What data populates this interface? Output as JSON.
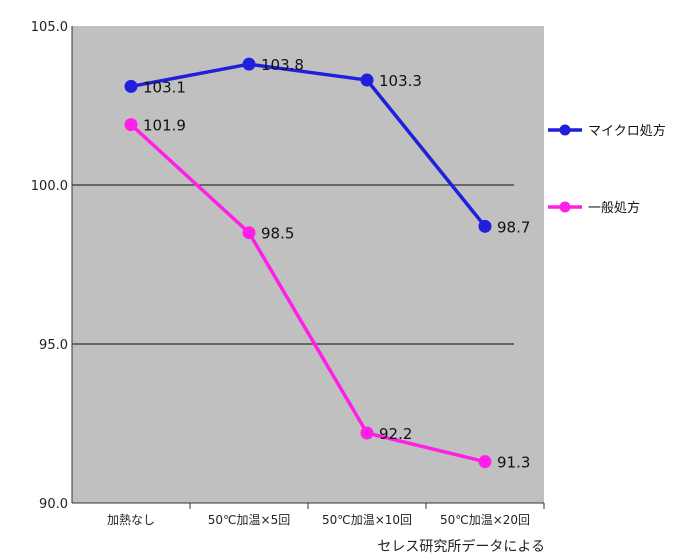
{
  "chart_data": {
    "type": "line",
    "categories": [
      "加熱なし",
      "50℃加温×5回",
      "50℃加温×10回",
      "50℃加温×20回"
    ],
    "series": [
      {
        "name": "マイクロ処方",
        "color": "#1f1fdc",
        "values": [
          103.1,
          103.8,
          103.3,
          98.7
        ],
        "labels": [
          "103.1",
          "103.8",
          "103.3",
          "98.7"
        ]
      },
      {
        "name": "一般処方",
        "color": "#ff1fe6",
        "values": [
          101.9,
          98.5,
          92.2,
          91.3
        ],
        "labels": [
          "101.9",
          "98.5",
          "92.2",
          "91.3"
        ]
      }
    ],
    "ylim": [
      90,
      105
    ],
    "yticks": [
      90,
      95,
      100,
      105
    ],
    "ytick_labels": [
      "90.0",
      "95.0",
      "100.0",
      "105.0"
    ],
    "gridlines": [
      95,
      100
    ],
    "grid": true,
    "plot_background": "#c0c0c0",
    "legend_position": "right",
    "source_note": "セレス研究所データによる"
  }
}
